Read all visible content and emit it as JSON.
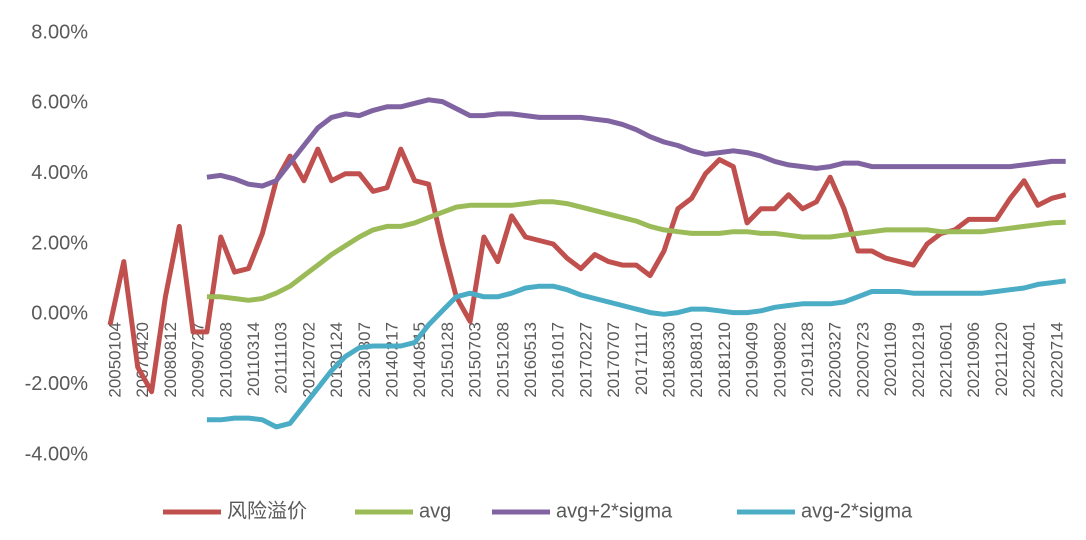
{
  "chart_data": {
    "type": "line",
    "categories": [
      "20050104",
      null,
      "20070420",
      null,
      "20080812",
      null,
      "20090727",
      null,
      "20100608",
      null,
      "20110314",
      null,
      "20111103",
      null,
      "20120702",
      null,
      "20130124",
      null,
      "20130807",
      null,
      "20140217",
      null,
      "20140815",
      null,
      "20150128",
      null,
      "20150703",
      null,
      "20151208",
      null,
      "20160513",
      null,
      "20161017",
      null,
      "20170227",
      null,
      "20170707",
      null,
      "20171117",
      null,
      "20180330",
      null,
      "20180810",
      null,
      "20181210",
      null,
      "20190409",
      null,
      "20190802",
      null,
      "20191128",
      null,
      "20200327",
      null,
      "20200723",
      null,
      "20201109",
      null,
      "20210219",
      null,
      "20210601",
      null,
      "20210906",
      null,
      "20211220",
      null,
      "20220401",
      null,
      "20220714",
      null
    ],
    "series": [
      {
        "name": "风险溢价",
        "color": "#c0504d",
        "values": [
          -0.3,
          1.5,
          -1.5,
          -2.2,
          0.5,
          2.5,
          -0.5,
          -0.5,
          2.2,
          1.2,
          1.3,
          2.3,
          3.8,
          4.5,
          3.8,
          4.7,
          3.8,
          4.0,
          4.0,
          3.5,
          3.6,
          4.7,
          3.8,
          3.7,
          2.0,
          0.5,
          -0.2,
          2.2,
          1.5,
          2.8,
          2.2,
          2.1,
          2.0,
          1.6,
          1.3,
          1.7,
          1.5,
          1.4,
          1.4,
          1.1,
          1.8,
          3.0,
          3.3,
          4.0,
          4.4,
          4.2,
          2.6,
          3.0,
          3.0,
          3.4,
          3.0,
          3.2,
          3.9,
          3.0,
          1.8,
          1.8,
          1.6,
          1.5,
          1.4,
          2.0,
          2.3,
          2.4,
          2.7,
          2.7,
          2.7,
          3.3,
          3.8,
          3.1,
          3.3,
          3.4
        ]
      },
      {
        "name": "avg",
        "color": "#9bbb59",
        "values": [
          null,
          null,
          null,
          null,
          null,
          null,
          null,
          0.5,
          0.5,
          0.45,
          0.4,
          0.45,
          0.6,
          0.8,
          1.1,
          1.4,
          1.7,
          1.95,
          2.2,
          2.4,
          2.5,
          2.5,
          2.6,
          2.75,
          2.9,
          3.05,
          3.1,
          3.1,
          3.1,
          3.1,
          3.15,
          3.2,
          3.2,
          3.15,
          3.05,
          2.95,
          2.85,
          2.75,
          2.65,
          2.5,
          2.4,
          2.35,
          2.3,
          2.3,
          2.3,
          2.35,
          2.35,
          2.3,
          2.3,
          2.25,
          2.2,
          2.2,
          2.2,
          2.25,
          2.3,
          2.35,
          2.4,
          2.4,
          2.4,
          2.4,
          2.35,
          2.35,
          2.35,
          2.35,
          2.4,
          2.45,
          2.5,
          2.55,
          2.6,
          2.62
        ]
      },
      {
        "name": "avg+2*sigma",
        "color": "#8064a2",
        "values": [
          null,
          null,
          null,
          null,
          null,
          null,
          null,
          3.9,
          3.95,
          3.85,
          3.7,
          3.65,
          3.8,
          4.3,
          4.8,
          5.3,
          5.6,
          5.7,
          5.65,
          5.8,
          5.9,
          5.9,
          6.0,
          6.1,
          6.05,
          5.85,
          5.65,
          5.65,
          5.7,
          5.7,
          5.65,
          5.6,
          5.6,
          5.6,
          5.6,
          5.55,
          5.5,
          5.4,
          5.25,
          5.05,
          4.9,
          4.8,
          4.65,
          4.55,
          4.6,
          4.65,
          4.6,
          4.5,
          4.35,
          4.25,
          4.2,
          4.15,
          4.2,
          4.3,
          4.3,
          4.2,
          4.2,
          4.2,
          4.2,
          4.2,
          4.2,
          4.2,
          4.2,
          4.2,
          4.2,
          4.2,
          4.25,
          4.3,
          4.35,
          4.35
        ]
      },
      {
        "name": "avg-2*sigma",
        "color": "#4bacc6",
        "values": [
          null,
          null,
          null,
          null,
          null,
          null,
          null,
          -3.0,
          -3.0,
          -2.95,
          -2.95,
          -3.0,
          -3.2,
          -3.1,
          -2.6,
          -2.1,
          -1.6,
          -1.2,
          -0.95,
          -0.9,
          -0.9,
          -0.9,
          -0.8,
          -0.3,
          0.1,
          0.5,
          0.6,
          0.5,
          0.5,
          0.6,
          0.75,
          0.8,
          0.8,
          0.7,
          0.55,
          0.45,
          0.35,
          0.25,
          0.15,
          0.05,
          0.0,
          0.05,
          0.15,
          0.15,
          0.1,
          0.05,
          0.05,
          0.1,
          0.2,
          0.25,
          0.3,
          0.3,
          0.3,
          0.35,
          0.5,
          0.65,
          0.65,
          0.65,
          0.6,
          0.6,
          0.6,
          0.6,
          0.6,
          0.6,
          0.65,
          0.7,
          0.75,
          0.85,
          0.9,
          0.95
        ]
      }
    ],
    "ylim": [
      -4,
      8
    ],
    "yticks": [
      {
        "value": -4,
        "label": "-4.00%"
      },
      {
        "value": -2,
        "label": "-2.00%"
      },
      {
        "value": 0,
        "label": "0.00%"
      },
      {
        "value": 2,
        "label": "2.00%"
      },
      {
        "value": 4,
        "label": "4.00%"
      },
      {
        "value": 6,
        "label": "6.00%"
      },
      {
        "value": 8,
        "label": "8.00%"
      }
    ],
    "grid": false,
    "legend": "bottom"
  }
}
